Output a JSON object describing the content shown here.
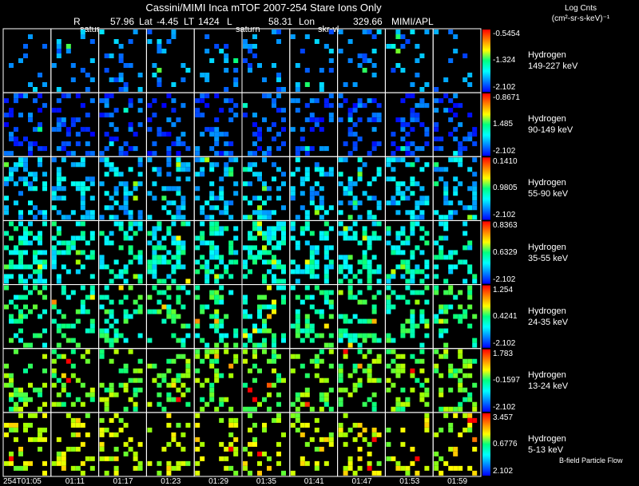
{
  "title": "Cassini/MIMI Inca mTOF  2007-254   Stare   Ions Only",
  "info": {
    "r_label": "R",
    "r_value": "57.96",
    "lat_label": "Lat",
    "lat_value": "-4.45",
    "lt_label": "LT",
    "lt_value": "1424",
    "l_label": "L",
    "l_value": "58.31",
    "lon_label": "Lon",
    "lon_value": "329.66",
    "org": "MIMI/APL"
  },
  "column_headers": [
    "satur",
    "saturn",
    "skr-vl"
  ],
  "unit_title": "Log Cnts",
  "unit_sub": "(cm²-sr-s-keV)⁻¹",
  "footer_note": "B-field Particle Flow",
  "chart_data": {
    "type": "heatmap",
    "title": "Cassini/MIMI Inca mTOF  2007-254   Stare   Ions Only",
    "columns": [
      "254T01:05",
      "01:11",
      "01:17",
      "01:23",
      "01:29",
      "01:35",
      "01:41",
      "01:47",
      "01:53",
      "01:59"
    ],
    "rows": [
      {
        "species": "Hydrogen",
        "energy": "149-227 keV",
        "cbar_max": "-0.5454",
        "cbar_mid": "-1.324",
        "cbar_min": "-2.102",
        "fill_level": 0.22,
        "density": 0.14
      },
      {
        "species": "Hydrogen",
        "energy": "90-149 keV",
        "cbar_max": "-0.8671",
        "cbar_mid": "1.485",
        "cbar_min": "-2.102",
        "fill_level": 0.12,
        "density": 0.28
      },
      {
        "species": "Hydrogen",
        "energy": "55-90 keV",
        "cbar_max": "0.1410",
        "cbar_mid": "0.9805",
        "cbar_min": "-2.102",
        "fill_level": 0.3,
        "density": 0.32
      },
      {
        "species": "Hydrogen",
        "energy": "35-55 keV",
        "cbar_max": "0.8363",
        "cbar_mid": "0.6329",
        "cbar_min": "-2.102",
        "fill_level": 0.42,
        "density": 0.38
      },
      {
        "species": "Hydrogen",
        "energy": "24-35 keV",
        "cbar_max": "1.254",
        "cbar_mid": "0.4241",
        "cbar_min": "-2.102",
        "fill_level": 0.5,
        "density": 0.32
      },
      {
        "species": "Hydrogen",
        "energy": "13-24 keV",
        "cbar_max": "1.783",
        "cbar_mid": "-0.1597",
        "cbar_min": "-2.102",
        "fill_level": 0.62,
        "density": 0.3
      },
      {
        "species": "Hydrogen",
        "energy": "5-13 keV",
        "cbar_max": "3.457",
        "cbar_mid": "0.6776",
        "cbar_min": "2.102",
        "fill_level": 0.74,
        "density": 0.24
      }
    ],
    "colormap": [
      "#ff0000",
      "#ff8000",
      "#ffff00",
      "#00ff80",
      "#00ffff",
      "#0080ff",
      "#0000ff"
    ],
    "grid": true,
    "legend_position": "right"
  }
}
